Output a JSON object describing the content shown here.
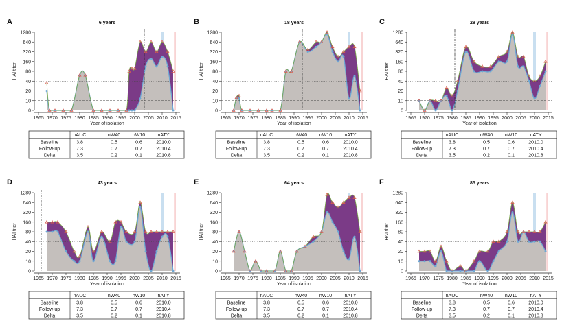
{
  "colors": {
    "baseline_fill": "#c4bfbc",
    "increase_fill": "#7b3b87",
    "follow_line": "#d95a4e",
    "baseline_line": "#6fa8d4",
    "green_line": "#7aa84a",
    "band_blue": "#c9dff0",
    "band_red": "#f8d4d4"
  },
  "shared": {
    "ylabel": "HAI titer",
    "xlabel": "Year of isolation",
    "yticks": [
      "0",
      "10",
      "20",
      "40",
      "80",
      "160",
      "320",
      "640",
      "1280"
    ],
    "xticks": [
      "1965",
      "1970",
      "1975",
      "1980",
      "1985",
      "1990",
      "1995",
      "2000",
      "2005",
      "2010",
      "2015"
    ],
    "x_range": [
      1965,
      2015
    ],
    "table_headers": [
      "",
      "nAUC",
      "nW40",
      "nW10",
      "nATY"
    ],
    "table_rows": [
      {
        "label": "Baseline",
        "nAUC": "3.8",
        "nW40": "0.5",
        "nW10": "0.6",
        "nATY": "2010.0"
      },
      {
        "label": "Follow-up",
        "nAUC": "7.3",
        "nW40": "0.7",
        "nW10": "0.7",
        "nATY": "2010.4"
      },
      {
        "label": "Delta",
        "nAUC": "3.5",
        "nW40": "0.2",
        "nW10": "0.1",
        "nATY": "2010.8"
      }
    ]
  },
  "chart_data": [
    {
      "panel": "A",
      "title": "6 years",
      "type": "area",
      "birth_year": 2003.5,
      "x": [
        1968,
        1969,
        1971,
        1974,
        1977,
        1980,
        1982,
        1985,
        1988,
        1991,
        1994,
        1997,
        1998,
        1999,
        2000,
        2002,
        2004,
        2006,
        2008,
        2010,
        2012,
        2014
      ],
      "baseline": [
        2,
        0,
        0,
        0,
        0,
        3.6,
        3.6,
        0,
        0,
        0,
        0,
        0,
        0,
        0,
        0,
        1.2,
        4.5,
        5.3,
        4.5,
        5.5,
        4.5,
        0
      ],
      "followup": [
        2.8,
        0,
        0,
        0,
        0,
        3.6,
        3.6,
        0,
        0,
        0,
        0,
        0,
        4,
        4.3,
        4.3,
        7,
        6,
        7,
        6,
        7,
        6,
        4
      ]
    },
    {
      "panel": "B",
      "title": "18 years",
      "type": "area",
      "birth_year": 1993,
      "x": [
        1968,
        1969,
        1970,
        1971,
        1974,
        1977,
        1980,
        1982,
        1985,
        1987,
        1989,
        1992,
        1995,
        1998,
        2000,
        2002,
        2004,
        2006,
        2008,
        2010,
        2012,
        2014
      ],
      "baseline": [
        0,
        1.2,
        1.2,
        0,
        0,
        0,
        0,
        0,
        0,
        4,
        4,
        7,
        6,
        6.5,
        7,
        7.8,
        6,
        5,
        5.5,
        1.2,
        3.5,
        0
      ],
      "followup": [
        0,
        1.3,
        1.5,
        0,
        0,
        0,
        0,
        0,
        0,
        4,
        4,
        7,
        6.2,
        7,
        7,
        8,
        6.5,
        5.5,
        6,
        6.5,
        6.5,
        2
      ]
    },
    {
      "panel": "C",
      "title": "28 years",
      "type": "area",
      "birth_year": 1981,
      "x": [
        1968,
        1970,
        1972,
        1974,
        1976,
        1978,
        1980,
        1982,
        1985,
        1988,
        1991,
        1994,
        1997,
        2000,
        2002,
        2004,
        2006,
        2008,
        2010,
        2012,
        2014
      ],
      "baseline": [
        1,
        0,
        1,
        0,
        1,
        1.5,
        0,
        2,
        6,
        4,
        4,
        4,
        5,
        5,
        7.8,
        4.5,
        4.5,
        3,
        1.2,
        2.5,
        4
      ],
      "followup": [
        1,
        0,
        1,
        1,
        1,
        2.3,
        1.5,
        3,
        6.5,
        5,
        4.5,
        4.5,
        5.5,
        6,
        8,
        5.5,
        5.5,
        3.5,
        3,
        3.5,
        5
      ]
    },
    {
      "panel": "D",
      "title": "43 years",
      "type": "area",
      "birth_year": 1966,
      "x": [
        1968,
        1970,
        1972,
        1975,
        1978,
        1980,
        1983,
        1985,
        1988,
        1991,
        1993,
        1995,
        1997,
        2000,
        2002,
        2004,
        2006,
        2008,
        2010,
        2012,
        2014
      ],
      "baseline": [
        4,
        4,
        4,
        2,
        1,
        1,
        4,
        1,
        3.5,
        1,
        1,
        4.5,
        3,
        3,
        6.5,
        2,
        0,
        2,
        3.5,
        3.5,
        0
      ],
      "followup": [
        5,
        5,
        5,
        4,
        2,
        1.5,
        4.5,
        2,
        4,
        3,
        5,
        5,
        4,
        4,
        7,
        4,
        4,
        4,
        4,
        4,
        4
      ]
    },
    {
      "panel": "E",
      "title": "64 years",
      "type": "area",
      "birth_year": null,
      "x": [
        1968,
        1970,
        1972,
        1974,
        1976,
        1978,
        1980,
        1983,
        1985,
        1987,
        1989,
        1991,
        1994,
        1997,
        2000,
        2002,
        2004,
        2006,
        2008,
        2010,
        2012,
        2014
      ],
      "baseline": [
        2,
        4,
        2,
        0,
        1,
        0,
        0,
        0,
        2,
        0,
        0,
        2,
        2.5,
        3,
        4,
        6,
        5,
        4,
        2,
        1.2,
        3.5,
        0
      ],
      "followup": [
        2,
        4,
        2,
        0,
        1,
        0,
        0,
        0,
        2,
        0,
        0,
        2,
        2.5,
        3.5,
        4,
        7.8,
        7,
        6.5,
        7,
        7.5,
        7.5,
        4
      ]
    },
    {
      "panel": "F",
      "title": "85 years",
      "type": "area",
      "birth_year": null,
      "x": [
        1968,
        1970,
        1972,
        1974,
        1976,
        1978,
        1980,
        1983,
        1985,
        1988,
        1990,
        1993,
        1995,
        1997,
        2000,
        2002,
        2004,
        2006,
        2008,
        2010,
        2012,
        2014
      ],
      "baseline": [
        1,
        1,
        1,
        0.5,
        2,
        0,
        0,
        0,
        0,
        0,
        1,
        0,
        1,
        2,
        3,
        6,
        3,
        4,
        3,
        3,
        3,
        2
      ],
      "followup": [
        2,
        2,
        2,
        1,
        2.5,
        1,
        0,
        0.5,
        0,
        1,
        2,
        2,
        3,
        3,
        4,
        7,
        4,
        4,
        4,
        4,
        4,
        5
      ]
    }
  ]
}
